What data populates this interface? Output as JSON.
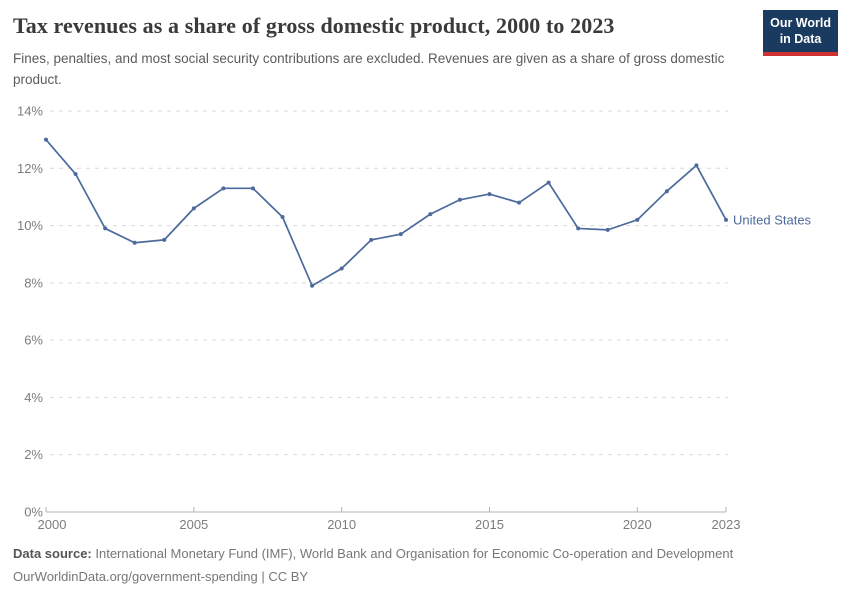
{
  "header": {
    "title": "Tax revenues as a share of gross domestic product, 2000 to 2023",
    "subtitle": "Fines, penalties, and most social security contributions are excluded. Revenues are given as a share of gross domestic product.",
    "logo": {
      "line1": "Our World",
      "line2": "in Data"
    }
  },
  "chart_data": {
    "type": "line",
    "title": "Tax revenues as a share of gross domestic product, 2000 to 2023",
    "x": [
      2000,
      2001,
      2002,
      2003,
      2004,
      2005,
      2006,
      2007,
      2008,
      2009,
      2010,
      2011,
      2012,
      2013,
      2014,
      2015,
      2016,
      2017,
      2018,
      2019,
      2020,
      2021,
      2022,
      2023
    ],
    "series": [
      {
        "name": "United States",
        "color": "#4c6a9c",
        "values": [
          13.0,
          11.8,
          9.9,
          9.4,
          9.5,
          10.6,
          11.3,
          11.3,
          10.3,
          7.9,
          8.5,
          9.5,
          9.7,
          10.4,
          10.9,
          11.1,
          10.8,
          11.5,
          9.9,
          9.85,
          10.2,
          11.2,
          12.1,
          10.2
        ]
      }
    ],
    "xlabel": "",
    "ylabel": "",
    "ylim": [
      0,
      14
    ],
    "xlim": [
      2000,
      2023
    ],
    "y_ticks": [
      {
        "value": 0,
        "label": "0%"
      },
      {
        "value": 2,
        "label": "2%"
      },
      {
        "value": 4,
        "label": "4%"
      },
      {
        "value": 6,
        "label": "6%"
      },
      {
        "value": 8,
        "label": "8%"
      },
      {
        "value": 10,
        "label": "10%"
      },
      {
        "value": 12,
        "label": "12%"
      },
      {
        "value": 14,
        "label": "14%"
      }
    ],
    "x_ticks": [
      {
        "value": 2000,
        "label": "2000"
      },
      {
        "value": 2005,
        "label": "2005"
      },
      {
        "value": 2010,
        "label": "2010"
      },
      {
        "value": 2015,
        "label": "2015"
      },
      {
        "value": 2020,
        "label": "2020"
      },
      {
        "value": 2023,
        "label": "2023"
      }
    ],
    "grid": "horizontal-dashed",
    "legend_position": "end-of-line",
    "end_label": "United States"
  },
  "footer": {
    "source_label": "Data source:",
    "source_text": "International Monetary Fund (IMF), World Bank and Organisation for Economic Co-operation and Development",
    "link": "OurWorldinData.org/government-spending",
    "license": "| CC BY"
  },
  "colors": {
    "line": "#4c6a9c",
    "grid": "#d9d9d9",
    "axis": "#b3b3b3",
    "tick_text": "#7d7d7d",
    "title_text": "#3a3a3a",
    "subtitle_text": "#5c5c5c",
    "footer_text": "#777777",
    "logo_bg": "#1a3a5f",
    "logo_stripe": "#d03131"
  }
}
